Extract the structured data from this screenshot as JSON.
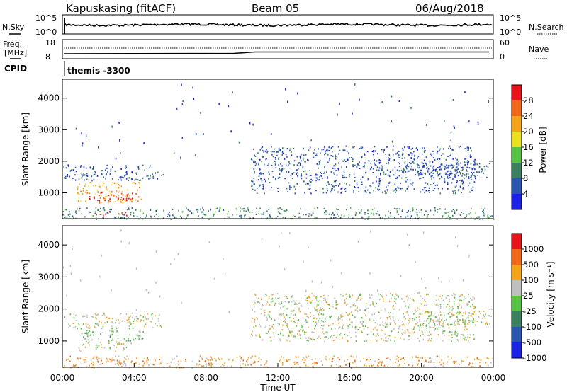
{
  "header": {
    "station": "Kapuskasing (fitACF)",
    "beam": "Beam 05",
    "date": "06/Aug/2018"
  },
  "strip_panels": {
    "nsky": {
      "left_label": "N.Sky",
      "left_ticks": [
        "10^5",
        "10^0"
      ],
      "right_ticks": [
        "10^5",
        "10^0"
      ],
      "right_label": "N.Search"
    },
    "freq": {
      "left_label_1": "Freq.",
      "left_label_2": "[MHz]",
      "left_ticks": [
        "18",
        "8"
      ],
      "right_ticks": [
        "60",
        "0"
      ],
      "right_label": "Nave"
    },
    "cpid": {
      "label": "CPID",
      "value": "themis -3300"
    }
  },
  "chart_data": [
    {
      "type": "heatmap",
      "quantity": "power",
      "ylabel": "Slant Range [km]",
      "ylim": [
        180,
        4600
      ],
      "yticks": [
        1000,
        2000,
        3000,
        4000
      ],
      "xlim": [
        0,
        24
      ],
      "colorbar": {
        "label": "Power [dB]",
        "ticks": [
          "4",
          "8",
          "12",
          "16",
          "20",
          "24",
          "28"
        ],
        "colors": [
          "#1c22e8",
          "#2a55b0",
          "#3c7f5c",
          "#58c244",
          "#e8e21e",
          "#f6a417",
          "#f26818",
          "#e8141a"
        ]
      },
      "regions": [
        {
          "t": [
            0.0,
            5.6
          ],
          "r": [
            1400,
            1900
          ],
          "level": 1
        },
        {
          "t": [
            0.8,
            4.5
          ],
          "r": [
            700,
            1350
          ],
          "level": 5
        },
        {
          "t": [
            1.5,
            4.0
          ],
          "r": [
            750,
            1050
          ],
          "level": 7
        },
        {
          "t": [
            1.8,
            3.6
          ],
          "r": [
            280,
            420
          ],
          "level": 7
        },
        {
          "t": [
            0.0,
            24.0
          ],
          "r": [
            180,
            550
          ],
          "level": 2
        },
        {
          "t": [
            10.5,
            23.0
          ],
          "r": [
            1000,
            2500
          ],
          "level": 1
        },
        {
          "t": [
            19.5,
            24.0
          ],
          "r": [
            1500,
            1950
          ],
          "level": 1
        }
      ]
    },
    {
      "type": "heatmap",
      "quantity": "velocity",
      "ylabel": "Slant Range [km]",
      "ylim": [
        180,
        4600
      ],
      "yticks": [
        1000,
        2000,
        3000,
        4000
      ],
      "xlim": [
        0,
        24
      ],
      "xticks": [
        "00:00",
        "04:00",
        "08:00",
        "12:00",
        "16:00",
        "20:00",
        "00:00"
      ],
      "xlabel": "Time UT",
      "colorbar": {
        "label": "Velocity [m s⁻¹]",
        "ticks": [
          "1000",
          "500",
          "100",
          "25",
          "-25",
          "-100",
          "-500",
          "-1000"
        ],
        "colors": [
          "#1c22e8",
          "#2a55b0",
          "#3c7f5c",
          "#58c244",
          "#bfbfbf",
          "#f6a417",
          "#f26818",
          "#e8141a"
        ]
      },
      "regions": [
        {
          "t": [
            0.0,
            5.6
          ],
          "r": [
            1400,
            1900
          ],
          "level": 4
        },
        {
          "t": [
            1.0,
            4.6
          ],
          "r": [
            1000,
            1350
          ],
          "level": 3
        },
        {
          "t": [
            0.8,
            4.0
          ],
          "r": [
            700,
            1000
          ],
          "level": 4
        },
        {
          "t": [
            1.8,
            3.6
          ],
          "r": [
            250,
            420
          ],
          "level": 5
        },
        {
          "t": [
            0.0,
            24.0
          ],
          "r": [
            180,
            550
          ],
          "level": 5
        },
        {
          "t": [
            10.5,
            23.0
          ],
          "r": [
            1000,
            2500
          ],
          "level": 4
        },
        {
          "t": [
            19.5,
            24.0
          ],
          "r": [
            1500,
            1950
          ],
          "level": 4
        }
      ]
    }
  ]
}
